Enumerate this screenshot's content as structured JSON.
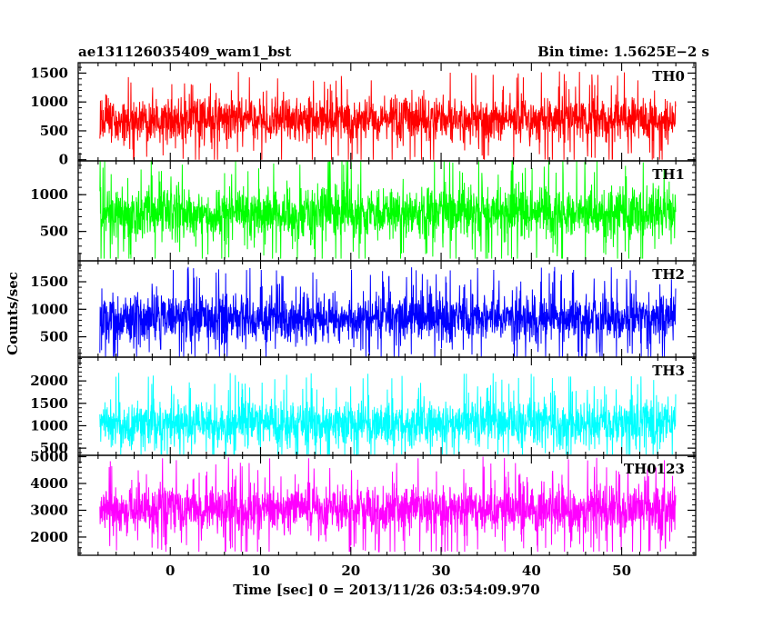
{
  "header": {
    "left_title": "ae131126035409_wam1_bst",
    "right_title": "Bin time: 1.5625E−2 s"
  },
  "axes": {
    "xlabel": "Time [sec] 0 = 2013/11/26 03:54:09.970",
    "ylabel": "Counts/sec"
  },
  "chart_data": {
    "type": "line",
    "bin_time_s": 0.015625,
    "x_range": [
      -7.8,
      56.0
    ],
    "xlim": [
      -10.2,
      58.2
    ],
    "x_ticks": [
      0,
      10,
      20,
      30,
      40,
      50
    ],
    "x_tick_labels": [
      "0",
      "10",
      "20",
      "30",
      "40",
      "50"
    ],
    "panels": [
      {
        "name": "TH0",
        "color": "#ff0000",
        "ylim": [
          -20,
          1680
        ],
        "y_ticks": [
          0,
          500,
          1000,
          1500
        ],
        "y_tick_labels": [
          "0",
          "500",
          "1000",
          "1500"
        ],
        "mean": 690,
        "spread": 560,
        "min": 0,
        "max": 1680
      },
      {
        "name": "TH1",
        "color": "#00ff00",
        "ylim": [
          100,
          1460
        ],
        "y_ticks": [
          500,
          1000
        ],
        "y_tick_labels": [
          "500",
          "1000"
        ],
        "mean": 750,
        "spread": 520,
        "min": 130,
        "max": 1460
      },
      {
        "name": "TH2",
        "color": "#0000ff",
        "ylim": [
          130,
          1880
        ],
        "y_ticks": [
          500,
          1000,
          1500
        ],
        "y_tick_labels": [
          "500",
          "1000",
          "1500"
        ],
        "mean": 840,
        "spread": 620,
        "min": 140,
        "max": 1880
      },
      {
        "name": "TH3",
        "color": "#00ffff",
        "ylim": [
          340,
          2530
        ],
        "y_ticks": [
          500,
          1000,
          1500,
          2000
        ],
        "y_tick_labels": [
          "500",
          "1000",
          "1500",
          "2000"
        ],
        "mean": 1050,
        "spread": 760,
        "min": 360,
        "max": 2530
      },
      {
        "name": "TH0123",
        "color": "#ff00ff",
        "ylim": [
          1320,
          5050
        ],
        "y_ticks": [
          2000,
          3000,
          4000,
          5000
        ],
        "y_tick_labels": [
          "2000",
          "3000",
          "4000",
          "5000"
        ],
        "mean": 3050,
        "spread": 1300,
        "min": 1450,
        "max": 5050
      }
    ]
  }
}
